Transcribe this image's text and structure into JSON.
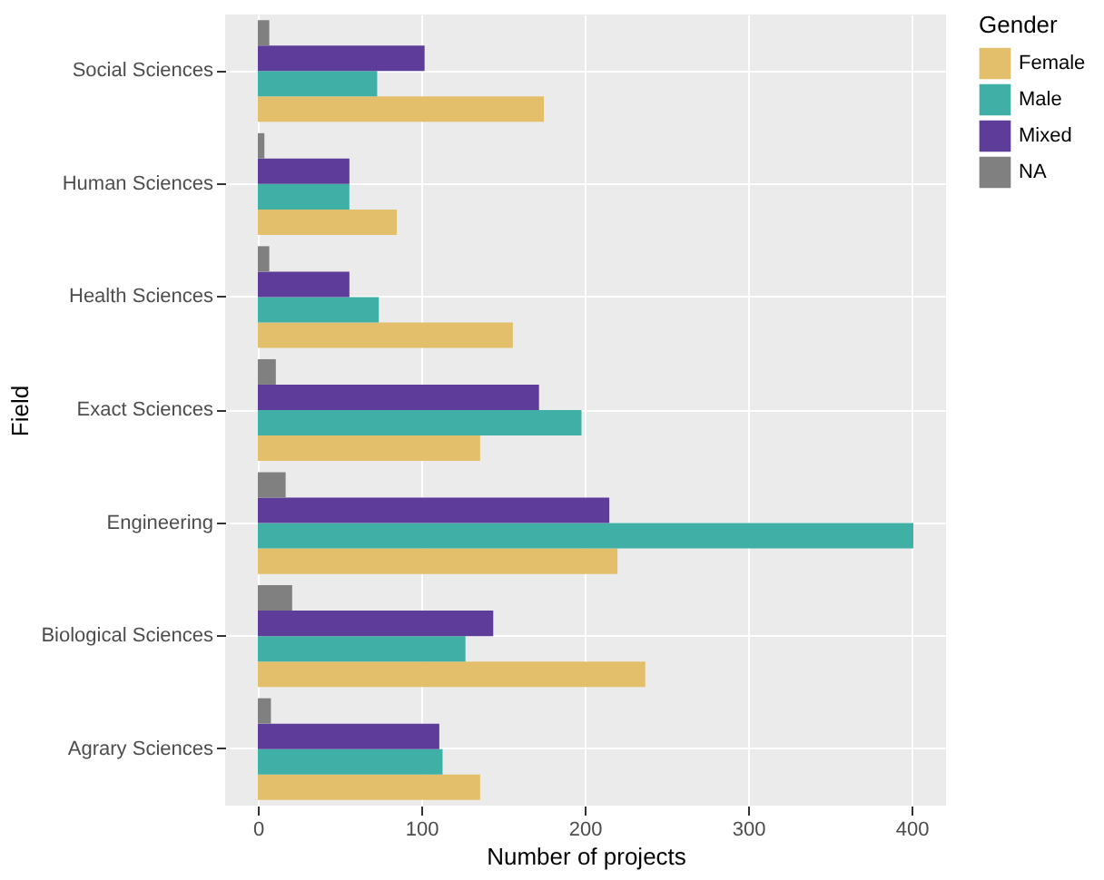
{
  "chart_data": {
    "type": "bar",
    "orientation": "horizontal",
    "xlabel": "Number of projects",
    "ylabel": "Field",
    "legend_title": "Gender",
    "legend": "right",
    "grid": true,
    "categories": [
      "Social Sciences",
      "Human Sciences",
      "Health Sciences",
      "Exact Sciences",
      "Engineering",
      "Biological Sciences",
      "Agrary Sciences"
    ],
    "xlim": [
      -20,
      421
    ],
    "xticks": [
      0,
      100,
      200,
      300,
      400
    ],
    "series": [
      {
        "name": "Female",
        "color": "#e3bf6b",
        "values": [
          175,
          85,
          156,
          136,
          220,
          237,
          136
        ]
      },
      {
        "name": "Male",
        "color": "#40b0a6",
        "values": [
          73,
          56,
          74,
          198,
          401,
          127,
          113
        ]
      },
      {
        "name": "Mixed",
        "color": "#5e3c99",
        "values": [
          102,
          56,
          56,
          172,
          215,
          144,
          111
        ]
      },
      {
        "name": "NA",
        "color": "#808080",
        "values": [
          7,
          4,
          7,
          11,
          17,
          21,
          8
        ]
      }
    ]
  }
}
